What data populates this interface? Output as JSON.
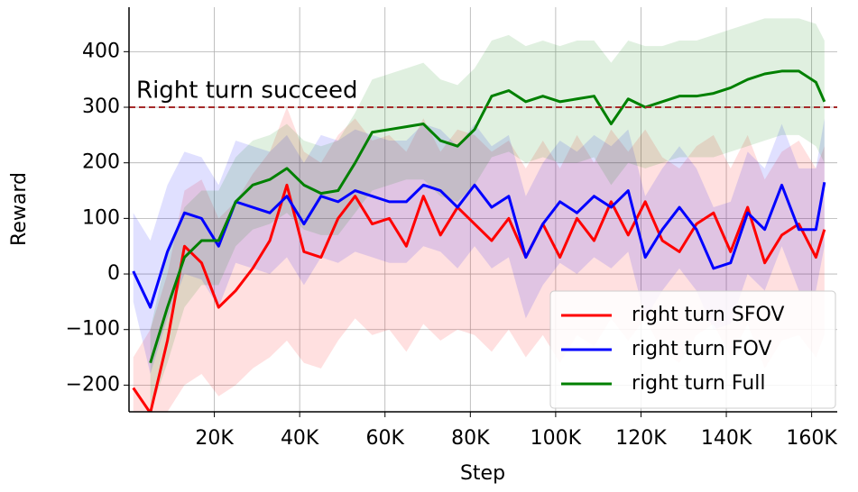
{
  "chart_data": {
    "type": "line",
    "x_label": "Step",
    "y_label": "Reward",
    "x": [
      1000,
      5000,
      9000,
      13000,
      17000,
      21000,
      25000,
      29000,
      33000,
      37000,
      41000,
      45000,
      49000,
      53000,
      57000,
      61000,
      65000,
      69000,
      73000,
      77000,
      81000,
      85000,
      89000,
      93000,
      97000,
      101000,
      105000,
      109000,
      113000,
      117000,
      121000,
      125000,
      129000,
      133000,
      137000,
      141000,
      145000,
      149000,
      153000,
      157000,
      161000,
      163000
    ],
    "series": [
      {
        "name": "right turn SFOV",
        "color": "#ff0000",
        "values": [
          -205,
          -250,
          -120,
          50,
          20,
          -60,
          -30,
          10,
          60,
          160,
          40,
          30,
          100,
          140,
          90,
          100,
          50,
          140,
          70,
          120,
          90,
          60,
          100,
          30,
          90,
          30,
          100,
          60,
          130,
          70,
          130,
          60,
          40,
          90,
          110,
          40,
          120,
          20,
          70,
          90,
          30,
          80
        ],
        "lower": [
          -248,
          -248,
          -248,
          -200,
          -180,
          -220,
          -200,
          -170,
          -150,
          -120,
          -160,
          -170,
          -120,
          -80,
          -110,
          -100,
          -140,
          -90,
          -120,
          -100,
          -110,
          -140,
          -100,
          -150,
          -110,
          -160,
          -110,
          -130,
          -80,
          -120,
          -80,
          -140,
          -160,
          -110,
          -90,
          -150,
          -90,
          -170,
          -120,
          -110,
          -150,
          -110
        ],
        "upper": [
          -150,
          -100,
          0,
          150,
          170,
          100,
          130,
          180,
          220,
          300,
          220,
          200,
          250,
          280,
          240,
          250,
          220,
          280,
          220,
          260,
          250,
          220,
          240,
          190,
          240,
          190,
          250,
          200,
          260,
          220,
          260,
          210,
          190,
          230,
          250,
          190,
          250,
          170,
          220,
          240,
          190,
          230
        ]
      },
      {
        "name": "right turn FOV",
        "color": "#0000ff",
        "values": [
          5,
          -60,
          40,
          110,
          100,
          50,
          130,
          120,
          110,
          140,
          90,
          140,
          130,
          150,
          140,
          130,
          130,
          160,
          150,
          120,
          160,
          120,
          140,
          30,
          90,
          130,
          110,
          140,
          120,
          150,
          30,
          80,
          120,
          80,
          10,
          20,
          110,
          80,
          160,
          80,
          80,
          165
        ],
        "lower": [
          -50,
          -180,
          -80,
          0,
          -10,
          -60,
          20,
          10,
          0,
          30,
          -20,
          30,
          20,
          40,
          30,
          20,
          20,
          50,
          40,
          10,
          50,
          10,
          30,
          -80,
          -20,
          20,
          0,
          30,
          10,
          40,
          -80,
          -30,
          10,
          -30,
          -100,
          -90,
          0,
          -30,
          50,
          -30,
          -30,
          50
        ],
        "upper": [
          110,
          60,
          160,
          220,
          210,
          160,
          240,
          230,
          220,
          250,
          200,
          250,
          240,
          260,
          250,
          240,
          240,
          270,
          260,
          230,
          270,
          230,
          250,
          140,
          200,
          240,
          220,
          250,
          230,
          260,
          140,
          190,
          230,
          190,
          120,
          130,
          220,
          190,
          270,
          190,
          190,
          280
        ]
      },
      {
        "name": "right turn Full",
        "color": "#008000",
        "values": [
          null,
          -160,
          -60,
          30,
          60,
          60,
          130,
          160,
          170,
          190,
          160,
          145,
          150,
          200,
          255,
          260,
          265,
          270,
          240,
          230,
          260,
          320,
          330,
          310,
          320,
          310,
          315,
          320,
          270,
          315,
          300,
          310,
          320,
          320,
          325,
          335,
          350,
          360,
          365,
          365,
          345,
          310
        ],
        "lower": [
          null,
          -248,
          -160,
          -60,
          -20,
          -20,
          50,
          80,
          90,
          110,
          80,
          70,
          70,
          110,
          150,
          160,
          170,
          170,
          140,
          130,
          160,
          210,
          220,
          200,
          210,
          200,
          200,
          210,
          160,
          200,
          190,
          200,
          210,
          210,
          210,
          220,
          230,
          240,
          250,
          250,
          230,
          200
        ],
        "upper": [
          null,
          -100,
          40,
          120,
          150,
          150,
          210,
          240,
          250,
          270,
          240,
          230,
          240,
          290,
          350,
          360,
          370,
          380,
          350,
          340,
          370,
          420,
          430,
          410,
          420,
          410,
          420,
          420,
          380,
          420,
          410,
          410,
          420,
          420,
          430,
          440,
          450,
          460,
          460,
          460,
          450,
          420
        ]
      }
    ],
    "annotation": {
      "text": "Right turn succeed",
      "y": 300,
      "color": "#a52a2a"
    },
    "xlim": [
      0,
      166000
    ],
    "ylim": [
      -248,
      480
    ],
    "xticks": [
      {
        "value": 20000,
        "label": "20K"
      },
      {
        "value": 40000,
        "label": "40K"
      },
      {
        "value": 60000,
        "label": "60K"
      },
      {
        "value": 80000,
        "label": "80K"
      },
      {
        "value": 100000,
        "label": "100K"
      },
      {
        "value": 120000,
        "label": "120K"
      },
      {
        "value": 140000,
        "label": "140K"
      },
      {
        "value": 160000,
        "label": "160K"
      }
    ],
    "yticks": [
      {
        "value": -200,
        "label": "−200"
      },
      {
        "value": -100,
        "label": "−100"
      },
      0,
      100,
      200,
      300,
      400
    ],
    "grid": true,
    "legend": "lower right"
  }
}
